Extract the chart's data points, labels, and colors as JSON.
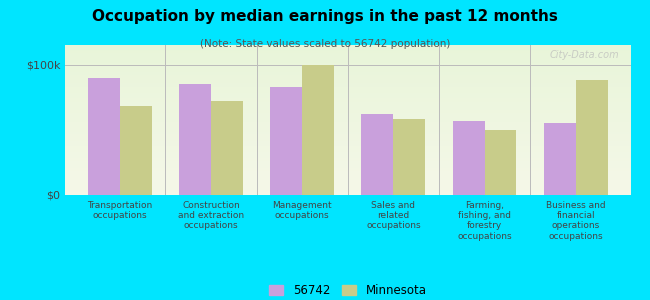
{
  "title": "Occupation by median earnings in the past 12 months",
  "subtitle": "(Note: State values scaled to 56742 population)",
  "categories": [
    "Transportation\noccupations",
    "Construction\nand extraction\noccupations",
    "Management\noccupations",
    "Sales and\nrelated\noccupations",
    "Farming,\nfishing, and\nforestry\noccupations",
    "Business and\nfinancial\noperations\noccupations"
  ],
  "values_56742": [
    90000,
    85000,
    83000,
    62000,
    57000,
    55000
  ],
  "values_minnesota": [
    68000,
    72000,
    100000,
    58000,
    50000,
    88000
  ],
  "color_56742": "#c9a0dc",
  "color_minnesota": "#c8cc8a",
  "background_color": "#00e5ff",
  "plot_bg_top": "#e8f5e8",
  "plot_bg_bottom": "#f5f5e8",
  "ylabel": "$0\n\n$100k",
  "ylim": [
    0,
    115000
  ],
  "yticks": [
    0,
    100000
  ],
  "ytick_labels": [
    "$0",
    "$100k"
  ],
  "legend_label_1": "56742",
  "legend_label_2": "Minnesota",
  "watermark": "City-Data.com"
}
